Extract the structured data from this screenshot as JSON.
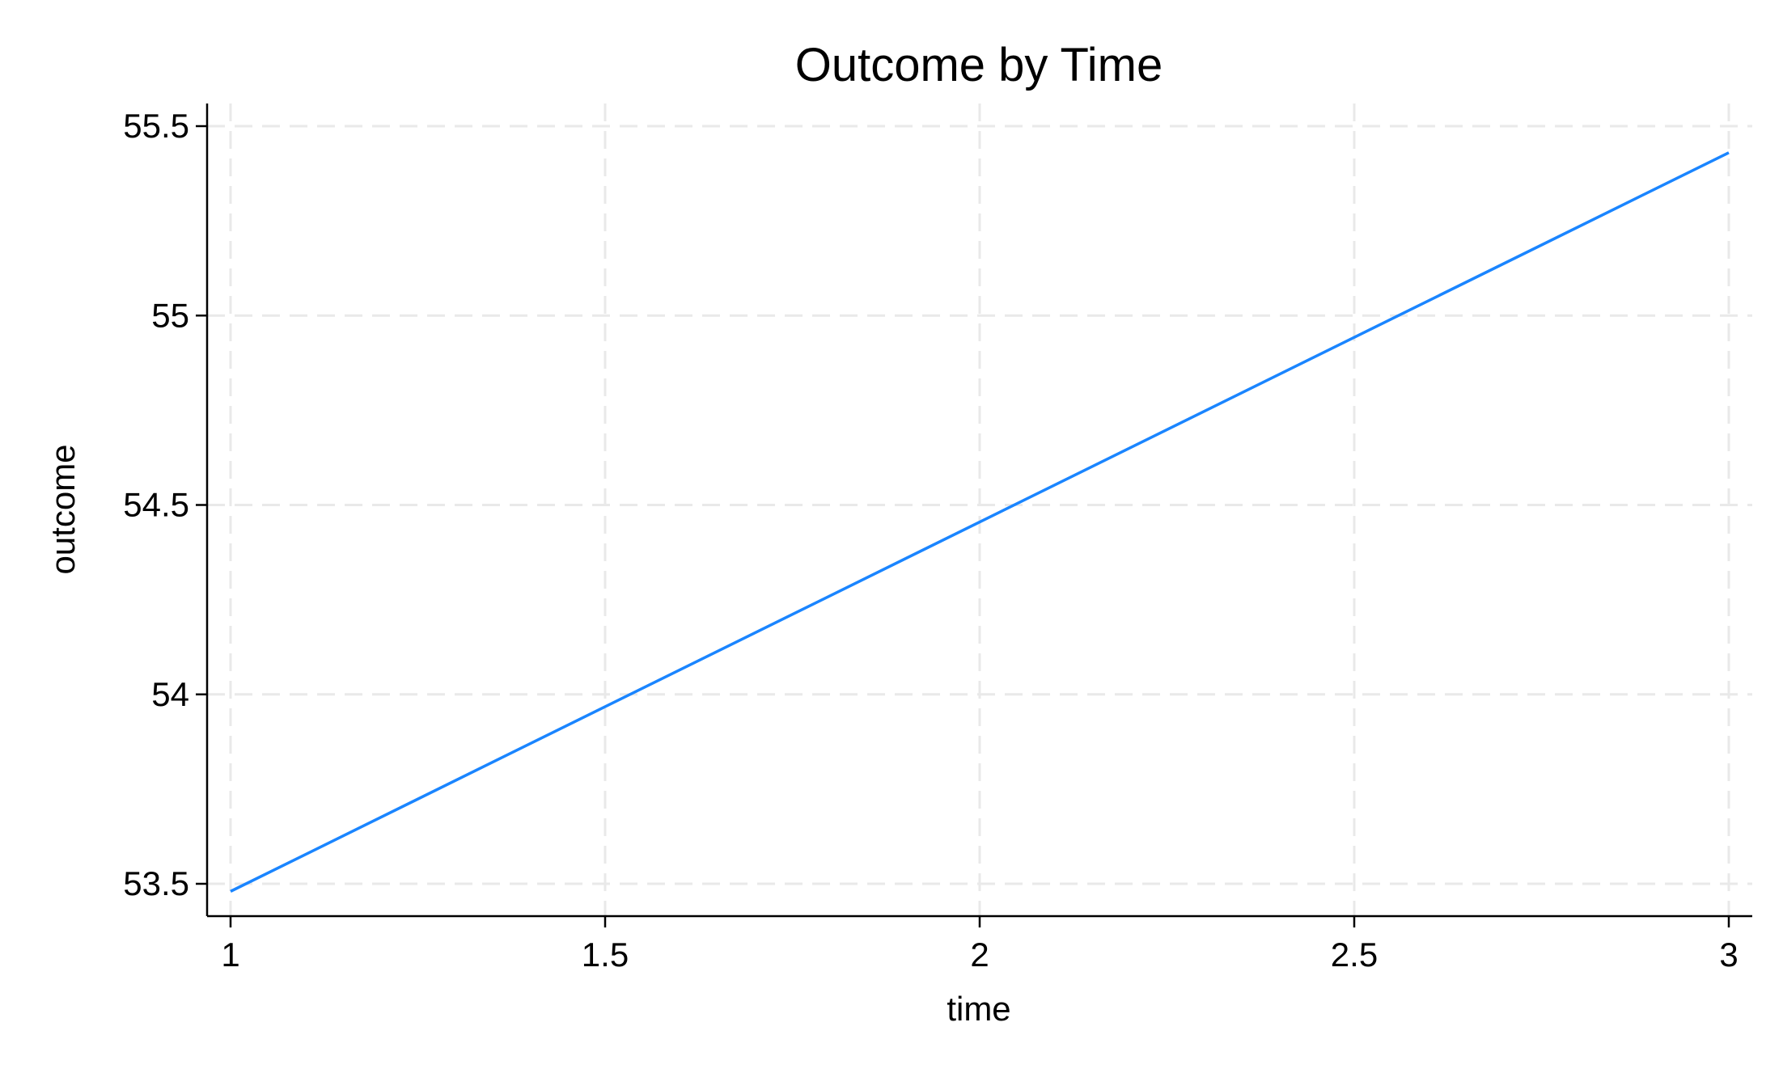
{
  "chart_data": {
    "type": "line",
    "title": "Outcome by Time",
    "xlabel": "time",
    "ylabel": "outcome",
    "xlim": [
      1,
      3
    ],
    "ylim": [
      53.5,
      55.5
    ],
    "x_ticks": [
      1,
      1.5,
      2,
      2.5,
      3
    ],
    "x_tick_labels": [
      "1",
      "1.5",
      "2",
      "2.5",
      "3"
    ],
    "y_ticks": [
      53.5,
      54,
      54.5,
      55,
      55.5
    ],
    "y_tick_labels": [
      "53.5",
      "54",
      "54.5",
      "55",
      "55.5"
    ],
    "grid": true,
    "legend": "none",
    "series": [
      {
        "color": "#1a85ff",
        "x": [
          1,
          3
        ],
        "y": [
          53.48,
          55.43
        ]
      }
    ]
  }
}
